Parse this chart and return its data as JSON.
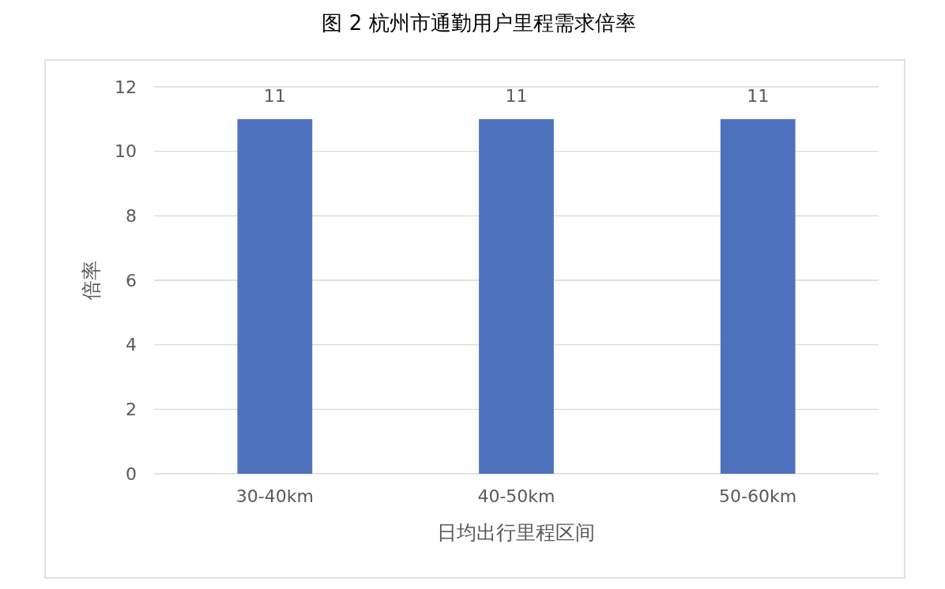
{
  "chart_data": {
    "type": "bar",
    "title": "图 2 杭州市通勤用户里程需求倍率",
    "xlabel": "日均出行里程区间",
    "ylabel": "倍率",
    "categories": [
      "30-40km",
      "40-50km",
      "50-60km"
    ],
    "values": [
      11,
      11,
      11
    ],
    "color": "#4e72be",
    "ylim": [
      0,
      12
    ],
    "yticks": [
      0,
      2,
      4,
      6,
      8,
      10,
      12
    ],
    "grid": "y",
    "data_labels": true
  }
}
